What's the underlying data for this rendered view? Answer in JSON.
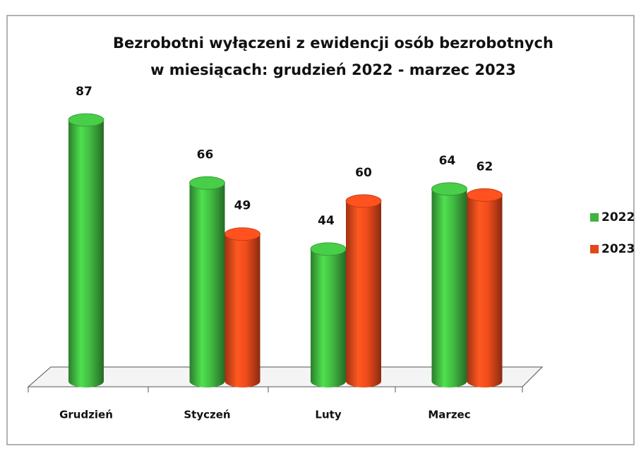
{
  "chart_data": {
    "type": "bar3d",
    "title": [
      "Bezrobotni wyłączeni z ewidencji osób bezrobotnych",
      "w miesiącach: grudzień 2022 - marzec 2023"
    ],
    "categories": [
      "Grudzień",
      "Styczeń",
      "Luty",
      "Marzec"
    ],
    "series": [
      {
        "name": "2022",
        "color": "#3fb33f",
        "values": [
          87,
          66,
          44,
          64
        ]
      },
      {
        "name": "2023",
        "color": "#e4471a",
        "values": [
          null,
          49,
          60,
          62
        ]
      }
    ],
    "legend": "right"
  }
}
